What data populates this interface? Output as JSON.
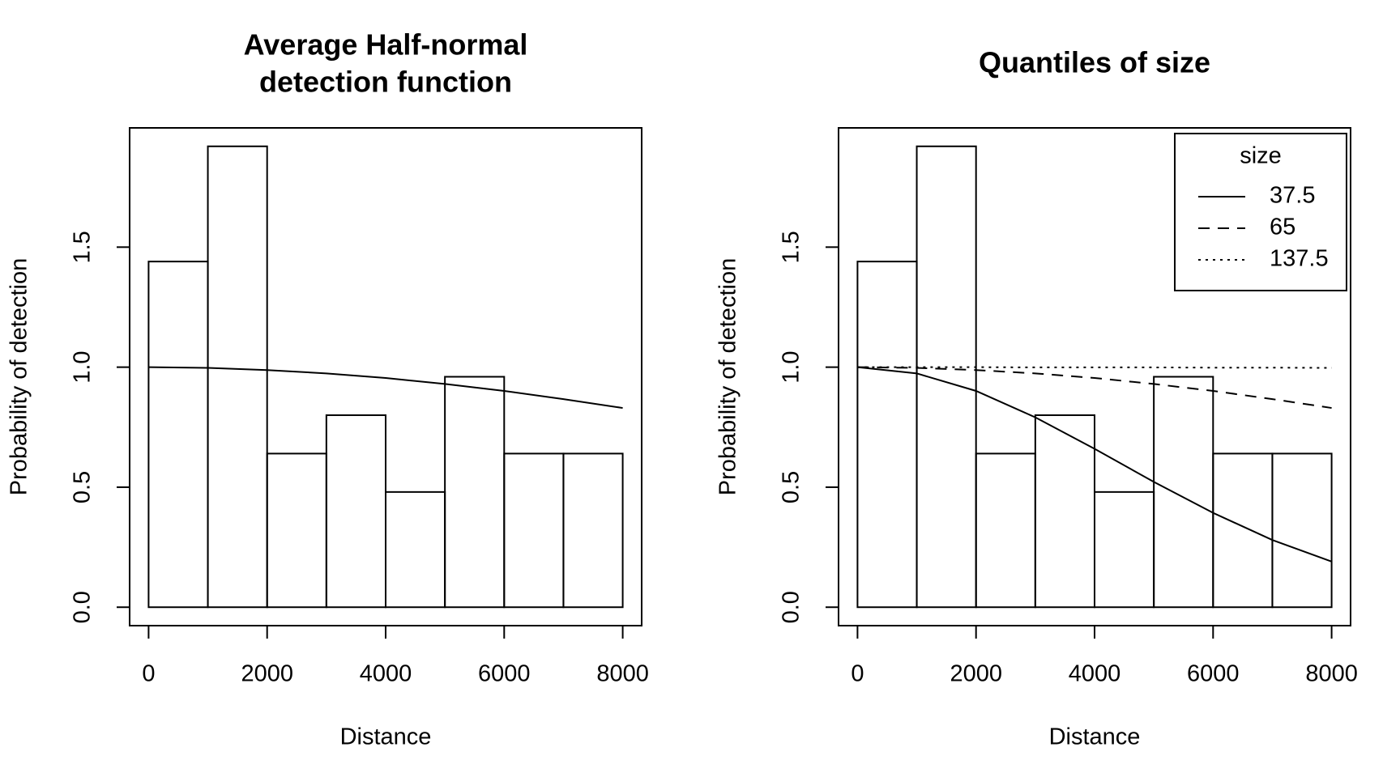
{
  "chart_data": [
    {
      "type": "histogram",
      "title": [
        "Average Half-normal",
        "detection function"
      ],
      "xlabel": "Distance",
      "ylabel": "Probability of detection",
      "bins": [
        0,
        1000,
        2000,
        3000,
        4000,
        5000,
        6000,
        7000,
        8000
      ],
      "counts": [
        1.44,
        1.92,
        0.64,
        0.8,
        0.48,
        0.96,
        0.64,
        0.64
      ],
      "xlim": [
        -320,
        8320
      ],
      "ylim": [
        -0.0768,
        1.9968
      ],
      "xticks": [
        0,
        2000,
        4000,
        6000,
        8000
      ],
      "yticks": [
        {
          "value": 0,
          "label": "0.0"
        },
        0.5,
        {
          "value": 1,
          "label": "1.0"
        },
        1.5
      ],
      "x": [
        0,
        1000,
        2000,
        3000,
        4000,
        5000,
        6000,
        7000,
        8000
      ],
      "series": [
        {
          "color": "#000000",
          "dash": "solid",
          "values": [
            1.0,
            0.997,
            0.988,
            0.974,
            0.955,
            0.93,
            0.901,
            0.867,
            0.83
          ]
        }
      ]
    },
    {
      "type": "histogram",
      "title": [
        "Quantiles of size"
      ],
      "xlabel": "Distance",
      "ylabel": "Probability of detection",
      "bins": [
        0,
        1000,
        2000,
        3000,
        4000,
        5000,
        6000,
        7000,
        8000
      ],
      "counts": [
        1.44,
        1.92,
        0.64,
        0.8,
        0.48,
        0.96,
        0.64,
        0.64
      ],
      "xlim": [
        -320,
        8320
      ],
      "ylim": [
        -0.0768,
        1.9968
      ],
      "xticks": [
        0,
        2000,
        4000,
        6000,
        8000
      ],
      "yticks": [
        {
          "value": 0,
          "label": "0.0"
        },
        0.5,
        {
          "value": 1,
          "label": "1.0"
        },
        1.5
      ],
      "x": [
        0,
        1000,
        2000,
        3000,
        4000,
        5000,
        6000,
        7000,
        8000
      ],
      "legend_title": "size",
      "legend": "topright",
      "series": [
        {
          "name": "37.5",
          "color": "#000000",
          "dash": "solid",
          "values": [
            1.0,
            0.974,
            0.901,
            0.791,
            0.66,
            0.522,
            0.393,
            0.28,
            0.19
          ]
        },
        {
          "name": "65",
          "color": "#000000",
          "dash": "dashed",
          "values": [
            1.0,
            0.997,
            0.988,
            0.974,
            0.955,
            0.93,
            0.901,
            0.867,
            0.83
          ]
        },
        {
          "name": "137.5",
          "color": "#000000",
          "dash": "dotted",
          "values": [
            1.0,
            1.0,
            1.0,
            0.999,
            0.999,
            0.999,
            0.998,
            0.998,
            0.997
          ]
        }
      ]
    }
  ]
}
